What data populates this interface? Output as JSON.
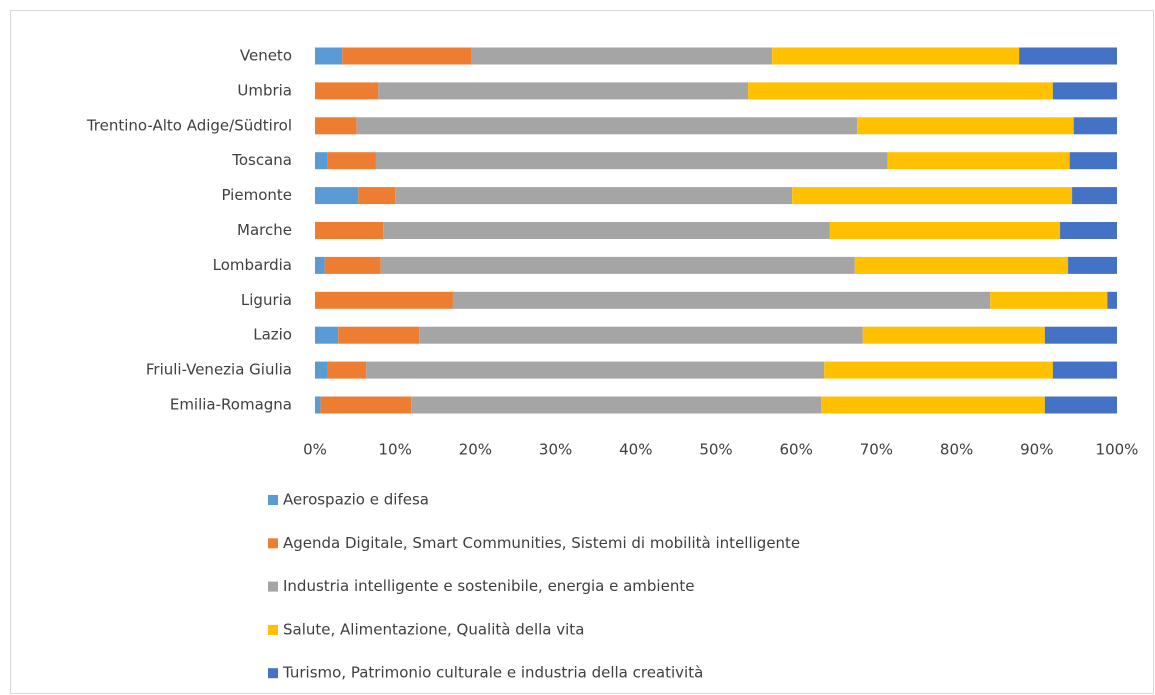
{
  "chart_data": {
    "type": "stacked-bar-horizontal",
    "categories": [
      "Veneto",
      "Umbria",
      "Trentino-Alto Adige/Südtirol",
      "Toscana",
      "Piemonte",
      "Marche",
      "Lombardia",
      "Liguria",
      "Lazio",
      "Friuli-Venezia Giulia",
      "Emilia-Romagna"
    ],
    "series": [
      {
        "name": "Aerospazio e difesa",
        "color": "#5b9bd5",
        "values": [
          3.4,
          0,
          0,
          1.6,
          5.4,
          0,
          1.2,
          0,
          2.9,
          1.5,
          0.7
        ]
      },
      {
        "name": "Agenda Digitale, Smart Communities, Sistemi di mobilità intelligente",
        "color": "#ed7d31",
        "values": [
          16.1,
          7.9,
          5.2,
          6.0,
          4.6,
          8.5,
          7.0,
          17.2,
          10.1,
          4.9,
          11.3
        ]
      },
      {
        "name": "Industria intelligente e sostenibile, energia e ambiente",
        "color": "#a5a5a5",
        "values": [
          37.5,
          46.1,
          62.4,
          63.8,
          49.5,
          55.7,
          59.1,
          67.0,
          55.3,
          57.1,
          51.1
        ]
      },
      {
        "name": "Salute, Alimentazione, Qualità della vita",
        "color": "#ffc000",
        "values": [
          30.8,
          38.0,
          27.0,
          22.7,
          34.9,
          28.7,
          26.6,
          14.6,
          22.7,
          28.5,
          27.9
        ]
      },
      {
        "name": "Turismo, Patrimonio culturale e industria della creatività",
        "color": "#4472c4",
        "values": [
          12.2,
          8.0,
          5.4,
          5.9,
          5.6,
          7.1,
          6.1,
          1.2,
          9.0,
          8.0,
          9.0
        ]
      }
    ],
    "xlim": [
      0,
      100
    ],
    "xticks": [
      {
        "value": 0,
        "label": "0%"
      },
      {
        "value": 10,
        "label": "10%"
      },
      {
        "value": 20,
        "label": "20%"
      },
      {
        "value": 30,
        "label": "30%"
      },
      {
        "value": 40,
        "label": "40%"
      },
      {
        "value": 50,
        "label": "50%"
      },
      {
        "value": 60,
        "label": "60%"
      },
      {
        "value": 70,
        "label": "70%"
      },
      {
        "value": 80,
        "label": "80%"
      },
      {
        "value": 90,
        "label": "90%"
      },
      {
        "value": 100,
        "label": "100%"
      }
    ],
    "legend": "bottom"
  }
}
